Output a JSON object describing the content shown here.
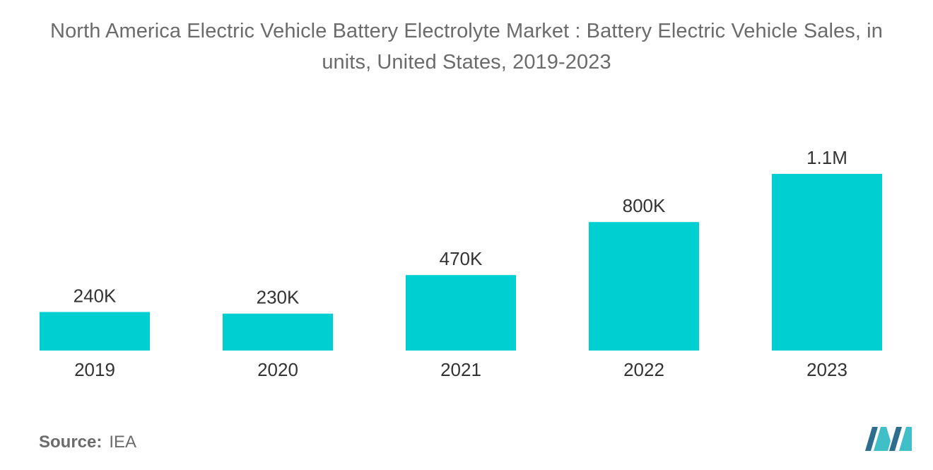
{
  "chart_data": {
    "type": "bar",
    "title": "North America Electric Vehicle Battery Electrolyte Market : Battery Electric Vehicle Sales, in units, United States, 2019-2023",
    "title_lines": [
      "North America Electric Vehicle Battery Electrolyte Market : Battery Electric Vehicle Sales, in",
      "units, United States, 2019-2023"
    ],
    "xlabel": "",
    "ylabel": "",
    "categories": [
      "2019",
      "2020",
      "2021",
      "2022",
      "2023"
    ],
    "values": [
      240000,
      230000,
      470000,
      800000,
      1100000
    ],
    "value_labels": [
      "240K",
      "230K",
      "470K",
      "800K",
      "1.1M"
    ],
    "ylim": [
      0,
      1100000
    ],
    "grid": false,
    "bar_color": "#00cfd1"
  },
  "source": {
    "label": "Source:",
    "value": "IEA"
  },
  "colors": {
    "logo_dark": "#2d6d8e",
    "logo_light": "#41bfc9"
  }
}
